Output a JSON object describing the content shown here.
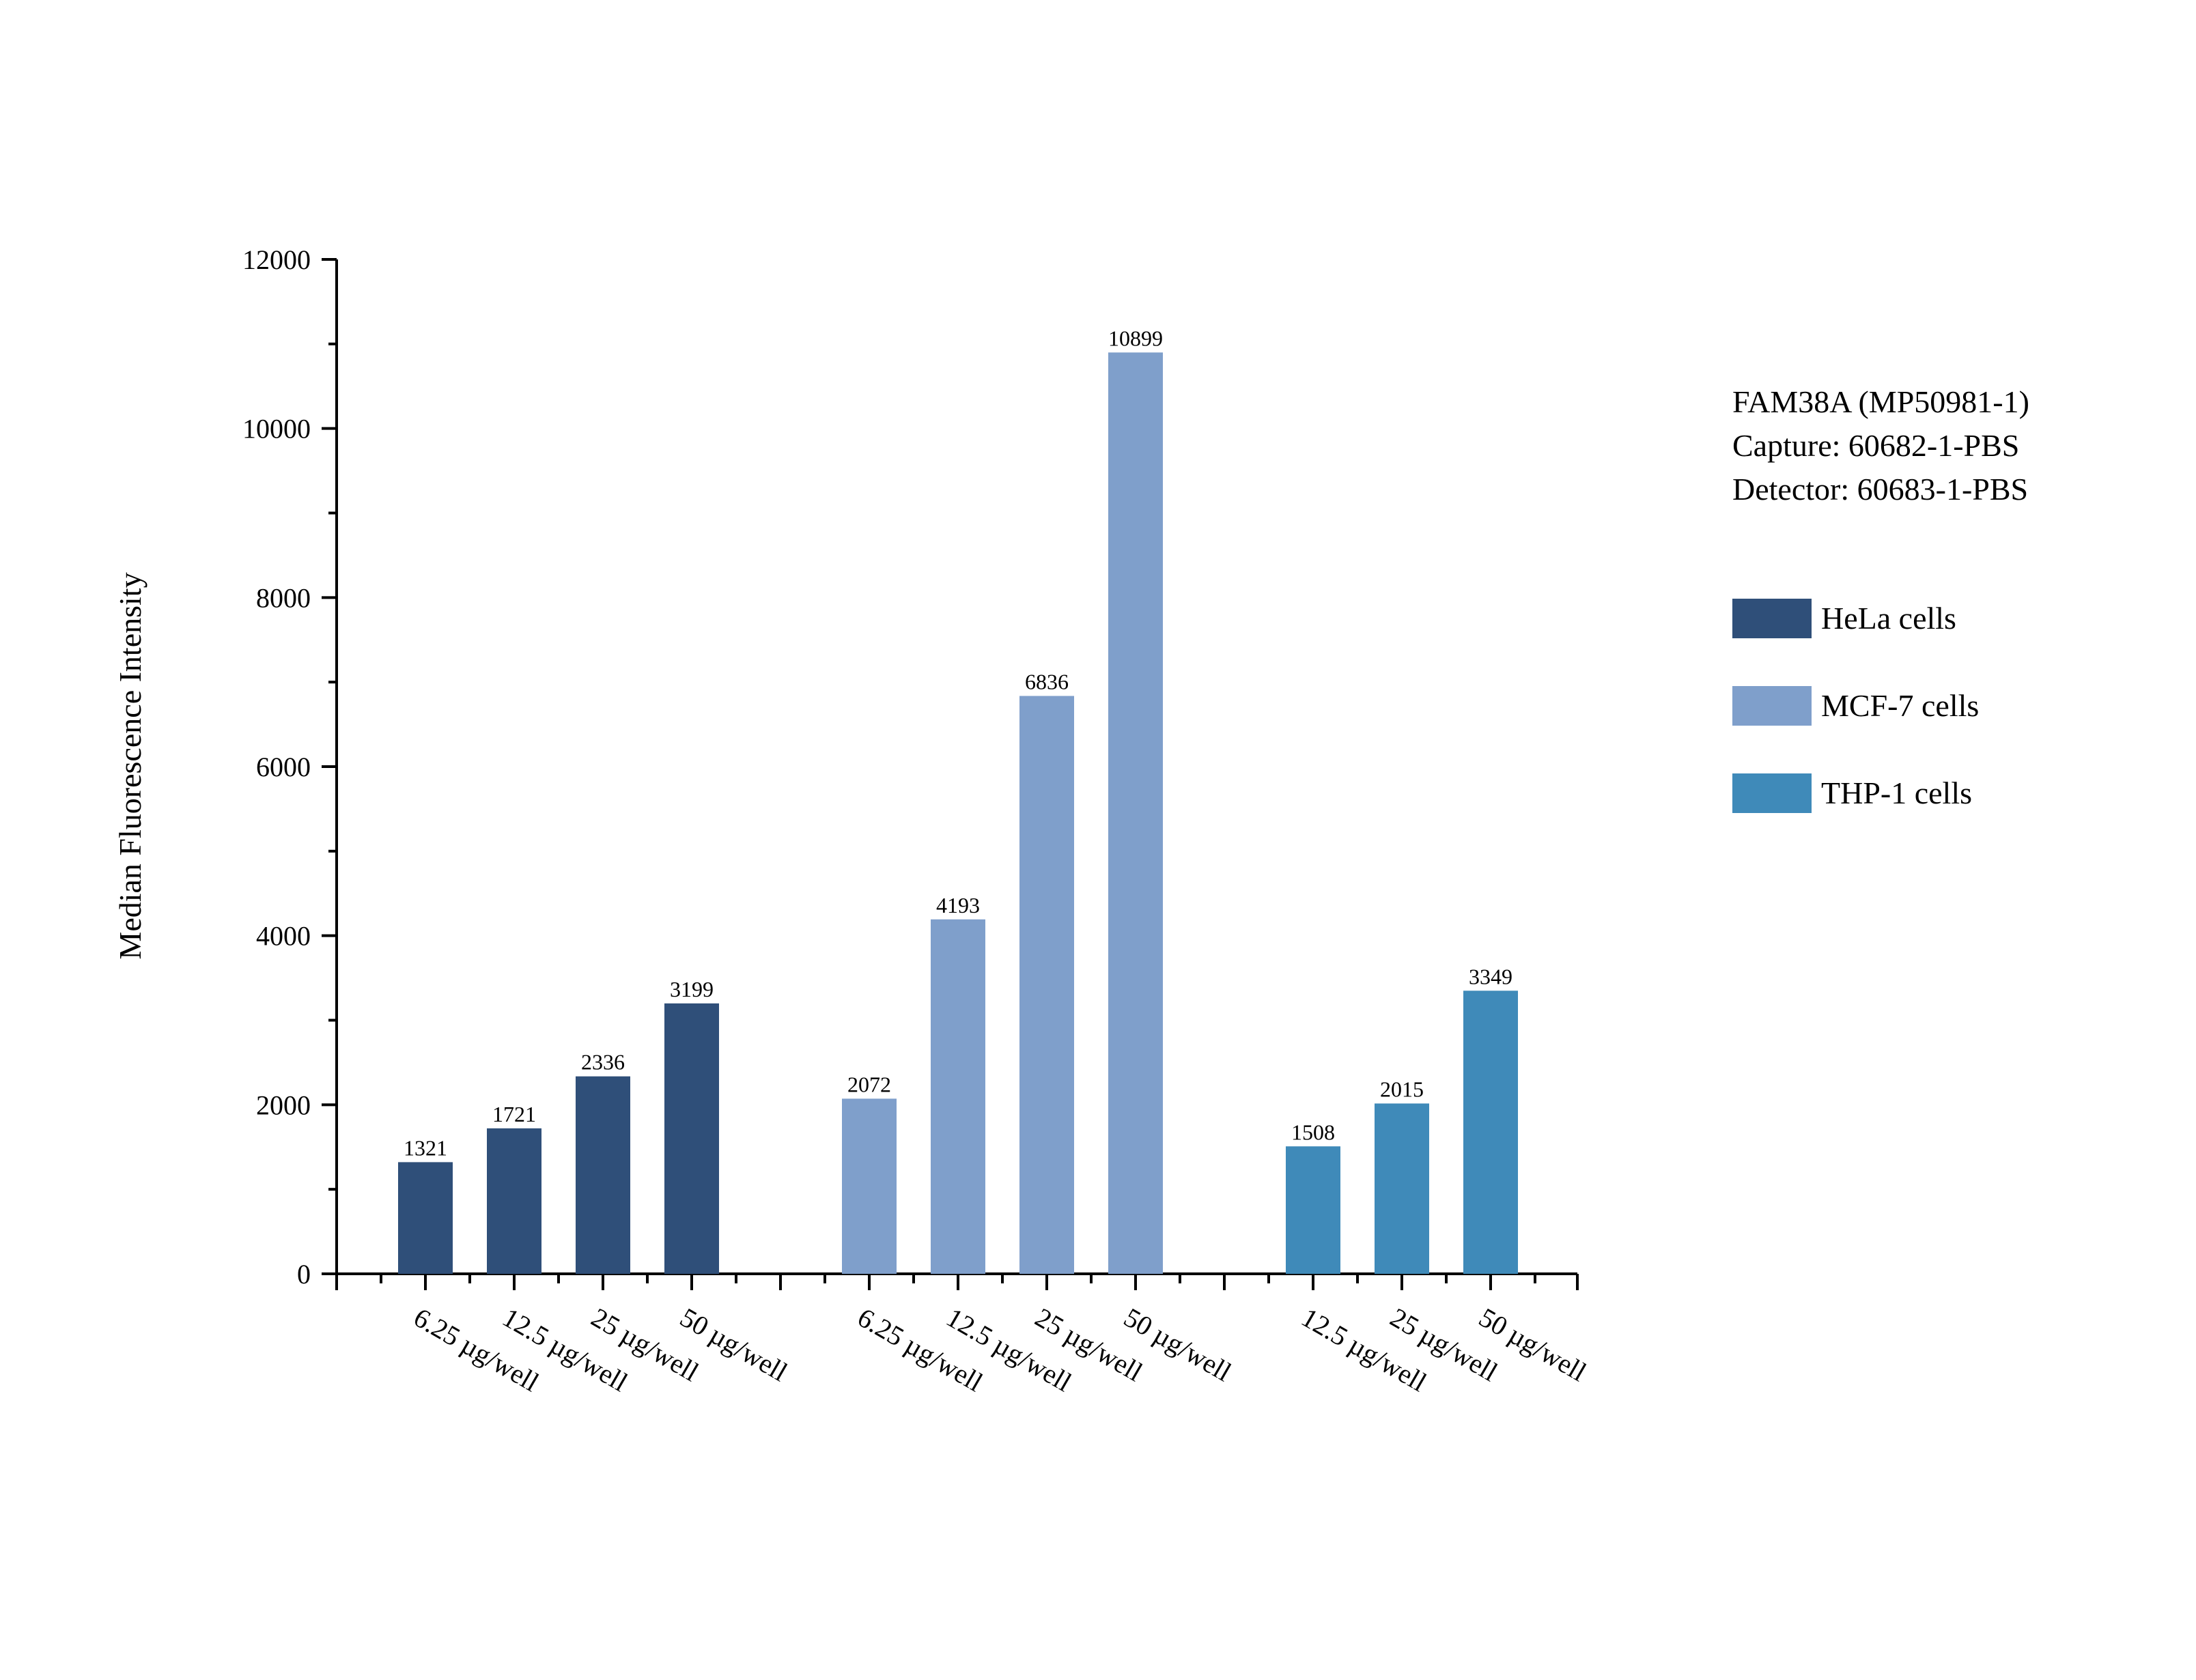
{
  "chart_data": {
    "type": "bar",
    "ylabel": "Median Fluorescence Intensity",
    "ylim": [
      0,
      12000
    ],
    "yticks": [
      0,
      2000,
      4000,
      6000,
      8000,
      10000,
      12000
    ],
    "grid": false,
    "legend_position": "right",
    "info_lines": [
      "FAM38A (MP50981-1)",
      "Capture: 60682-1-PBS",
      "Detector: 60683-1-PBS"
    ],
    "series": [
      {
        "name": "HeLa cells",
        "color": "#2f4f79",
        "categories": [
          "6.25 µg/well",
          "12.5 µg/well",
          "25 µg/well",
          "50 µg/well"
        ],
        "values": [
          1321,
          1721,
          2336,
          3199
        ]
      },
      {
        "name": "MCF-7 cells",
        "color": "#7f9fcb",
        "categories": [
          "6.25 µg/well",
          "12.5 µg/well",
          "25 µg/well",
          "50 µg/well"
        ],
        "values": [
          2072,
          4193,
          6836,
          10899
        ]
      },
      {
        "name": "THP-1 cells",
        "color": "#3f8ab9",
        "categories": [
          "12.5 µg/well",
          "25 µg/well",
          "50 µg/well"
        ],
        "values": [
          1508,
          2015,
          3349
        ]
      }
    ]
  }
}
